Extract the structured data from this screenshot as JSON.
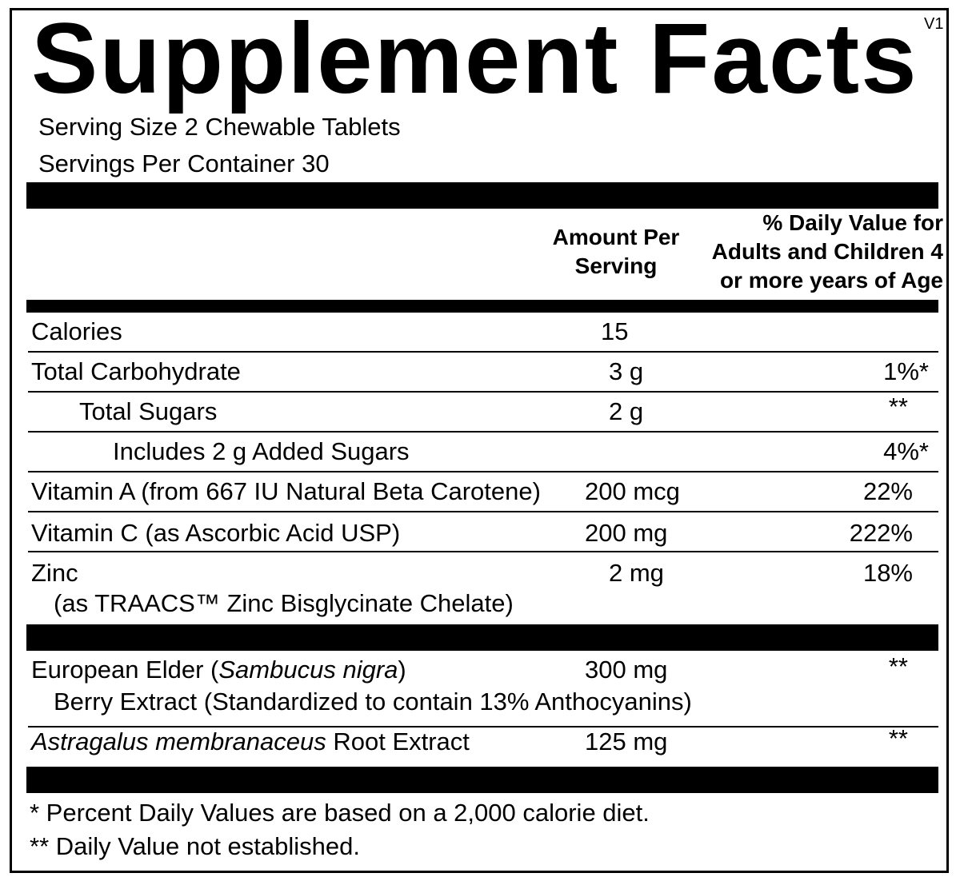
{
  "title": "Supplement Facts",
  "version": "V1",
  "serving_size": "Serving Size 2 Chewable Tablets",
  "servings_per_container": "Servings Per Container 30",
  "header": {
    "amount_line1": "Amount Per",
    "amount_line2": "Serving",
    "dv_line1": "% Daily Value for",
    "dv_line2": "Adults and Children 4",
    "dv_line3": "or more years of Age"
  },
  "rows": [
    {
      "name": "Calories",
      "amount": "15",
      "dv": ""
    },
    {
      "name": "Total Carbohydrate",
      "amount": "3 g",
      "dv": "1%*"
    },
    {
      "name": "Total Sugars",
      "amount": "2 g",
      "dv": "**"
    },
    {
      "name": "Includes 2 g Added Sugars",
      "amount": "",
      "dv": "4%*"
    },
    {
      "name": "Vitamin A (from 667 IU Natural Beta Carotene)",
      "amount": "200 mcg",
      "dv": "22%"
    },
    {
      "name": "Vitamin C (as Ascorbic Acid USP)",
      "amount": "200 mg",
      "dv": "222%"
    },
    {
      "name": "Zinc",
      "name_line2": "(as TRAACS™ Zinc Bisglycinate Chelate)",
      "amount": "2 mg",
      "dv": "18%"
    }
  ],
  "botanicals": [
    {
      "name_prefix": "European Elder (",
      "name_italic": "Sambucus nigra",
      "name_suffix": ")",
      "name_line2": "Berry Extract (Standardized to contain 13% Anthocyanins)",
      "amount": "300 mg",
      "dv": "**"
    },
    {
      "name_italic": "Astragalus membranaceus",
      "name_suffix": " Root Extract",
      "amount": "125 mg",
      "dv": "**"
    }
  ],
  "footnotes": [
    "* Percent Daily Values are based on a 2,000 calorie diet.",
    "** Daily Value not established."
  ]
}
